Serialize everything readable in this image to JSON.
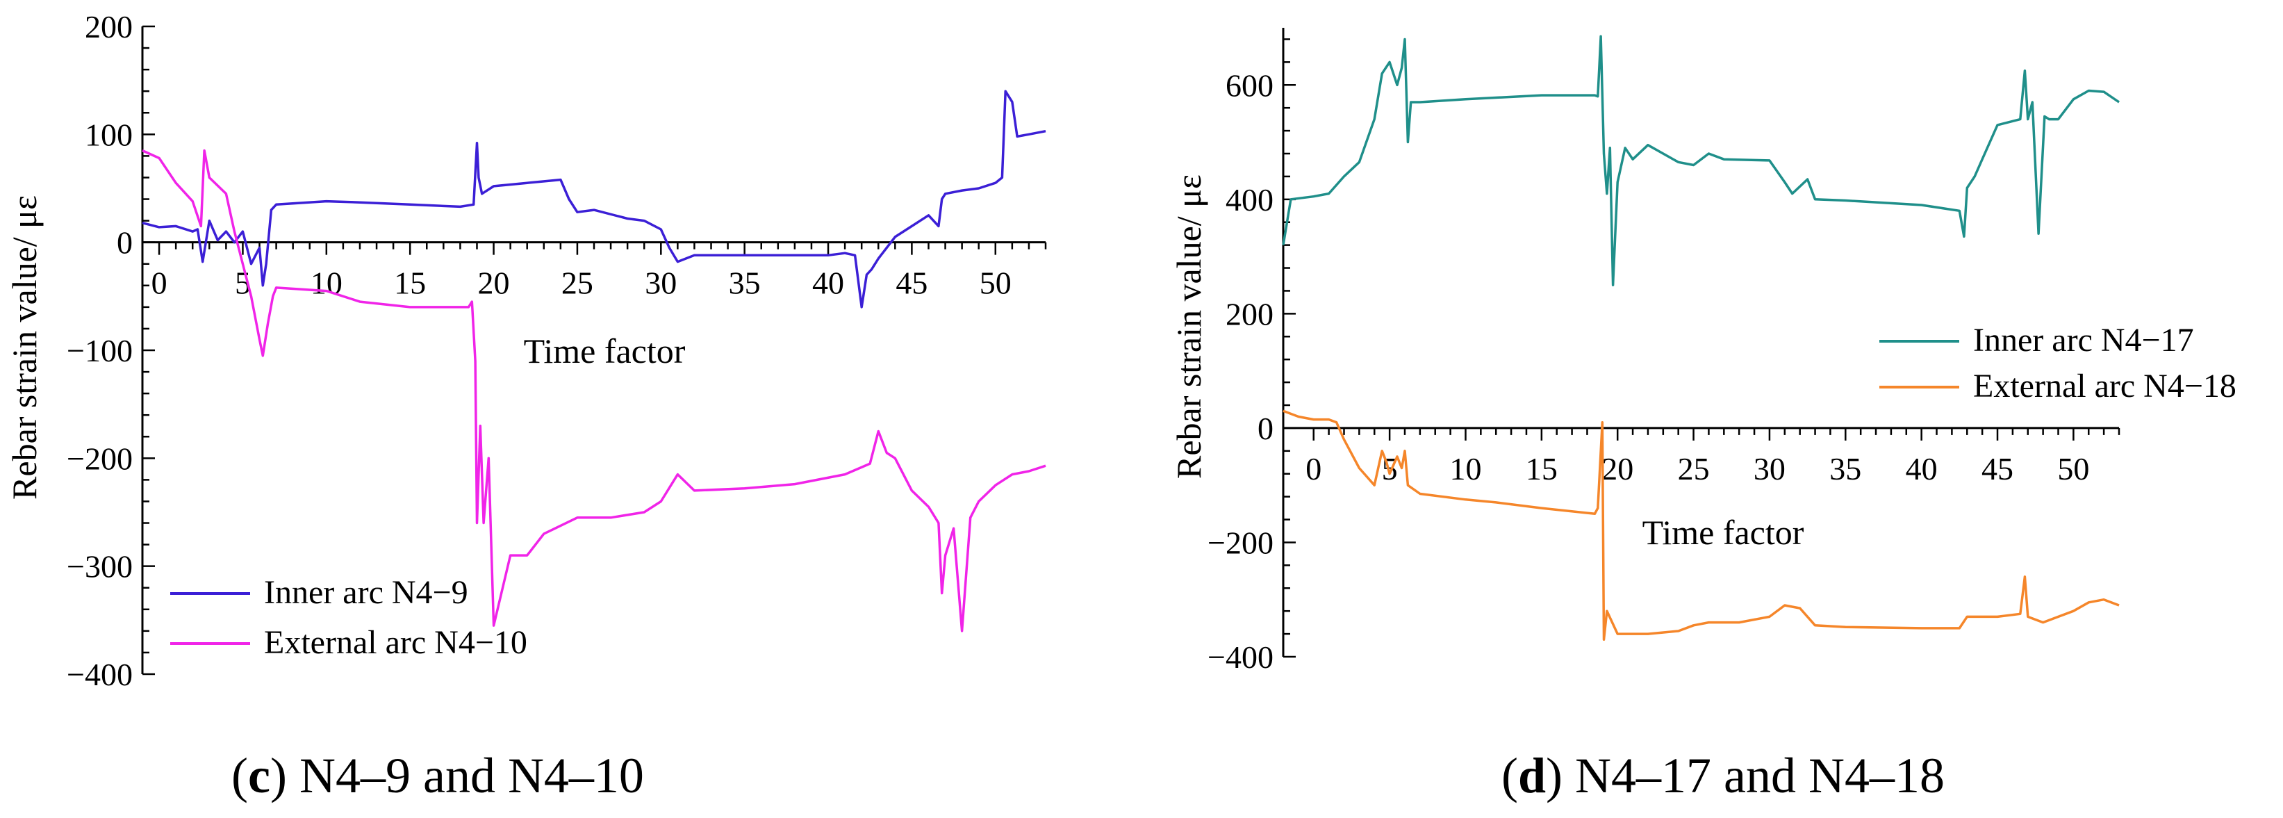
{
  "chart_data": [
    {
      "id": "c",
      "type": "line",
      "caption_letter": "c",
      "caption_text": " N4–9 and N4–10",
      "xlabel": "Time factor",
      "ylabel": "Rebar strain value/ με",
      "xlim": [
        -1,
        53
      ],
      "ylim": [
        -400,
        200
      ],
      "xticks": [
        0,
        5,
        10,
        15,
        20,
        25,
        30,
        35,
        40,
        45,
        50
      ],
      "yticks": [
        -400,
        -300,
        -200,
        -100,
        0,
        100,
        200
      ],
      "legend_position": "lower-left",
      "series": [
        {
          "name": "Inner arc N4−9",
          "color": "#3b1fd6",
          "x": [
            -1,
            0,
            1,
            2,
            2.3,
            2.6,
            3,
            3.5,
            4,
            4.5,
            5,
            5.5,
            6,
            6.2,
            6.4,
            6.7,
            7,
            10,
            12,
            15,
            18,
            18.8,
            19,
            19.1,
            19.3,
            20,
            22,
            24,
            24.5,
            25,
            26,
            28,
            29,
            30,
            30.5,
            31,
            32,
            35,
            38,
            40,
            41,
            41.6,
            42,
            42.3,
            42.6,
            43,
            44,
            45,
            46,
            46.6,
            46.8,
            47,
            48,
            49,
            50,
            50.4,
            50.6,
            51,
            51.3,
            52,
            53
          ],
          "y": [
            18,
            14,
            15,
            10,
            12,
            -18,
            20,
            2,
            10,
            0,
            10,
            -20,
            -5,
            -40,
            -20,
            30,
            35,
            38,
            37,
            35,
            33,
            35,
            92,
            60,
            45,
            52,
            55,
            58,
            40,
            28,
            30,
            22,
            20,
            12,
            -5,
            -18,
            -12,
            -12,
            -12,
            -12,
            -10,
            -12,
            -60,
            -30,
            -25,
            -15,
            5,
            15,
            25,
            15,
            40,
            45,
            48,
            50,
            55,
            60,
            140,
            130,
            98,
            100,
            103
          ]
        },
        {
          "name": "External arc N4−10",
          "color": "#f024e8",
          "x": [
            -1,
            0,
            1,
            2,
            2.5,
            2.7,
            3,
            4,
            4.5,
            5,
            5.5,
            6,
            6.2,
            6.5,
            6.8,
            7,
            10,
            12,
            15,
            18.5,
            18.7,
            18.9,
            19,
            19.2,
            19.4,
            19.7,
            20,
            21,
            22,
            23,
            25,
            27,
            29,
            30,
            31,
            32,
            35,
            38,
            41,
            42.5,
            43,
            43.5,
            44,
            45,
            46,
            46.6,
            46.8,
            47,
            47.5,
            48,
            48.5,
            49,
            50,
            51,
            52,
            53
          ],
          "y": [
            85,
            78,
            55,
            38,
            15,
            85,
            60,
            45,
            10,
            -20,
            -50,
            -90,
            -105,
            -75,
            -50,
            -42,
            -45,
            -55,
            -60,
            -60,
            -55,
            -110,
            -260,
            -170,
            -260,
            -200,
            -355,
            -290,
            -290,
            -270,
            -255,
            -255,
            -250,
            -240,
            -215,
            -230,
            -228,
            -224,
            -215,
            -205,
            -175,
            -195,
            -200,
            -230,
            -245,
            -260,
            -325,
            -290,
            -265,
            -360,
            -255,
            -240,
            -225,
            -215,
            -212,
            -207
          ]
        }
      ]
    },
    {
      "id": "d",
      "type": "line",
      "caption_letter": "d",
      "caption_text": " N4–17 and N4–18",
      "xlabel": "Time factor",
      "ylabel": "Rebar strain value/ με",
      "xlim": [
        -2,
        53
      ],
      "ylim": [
        -400,
        700
      ],
      "xticks": [
        0,
        5,
        10,
        15,
        20,
        25,
        30,
        35,
        40,
        45,
        50
      ],
      "yticks": [
        -400,
        -200,
        0,
        200,
        400,
        600
      ],
      "legend_position": "right",
      "series": [
        {
          "name": "Inner arc N4−17",
          "color": "#1f8f8a",
          "x": [
            -2,
            -1.5,
            0,
            1,
            2,
            3,
            4,
            4.5,
            5,
            5.5,
            5.8,
            6,
            6.2,
            6.4,
            7,
            10,
            15,
            18.5,
            18.7,
            18.9,
            19.1,
            19.3,
            19.5,
            19.7,
            20,
            20.5,
            21,
            22,
            23,
            24,
            25,
            26,
            27,
            30,
            31,
            31.5,
            32.5,
            33,
            35,
            40,
            42.5,
            42.8,
            43,
            43.5,
            44,
            45,
            46.5,
            46.8,
            47,
            47.3,
            47.7,
            48.1,
            48.4,
            49,
            50,
            51,
            52,
            53
          ],
          "y": [
            320,
            400,
            405,
            410,
            440,
            465,
            540,
            620,
            640,
            600,
            630,
            680,
            500,
            570,
            570,
            575,
            582,
            582,
            580,
            685,
            480,
            410,
            490,
            250,
            430,
            490,
            470,
            495,
            480,
            465,
            460,
            480,
            470,
            468,
            430,
            410,
            435,
            400,
            398,
            390,
            380,
            335,
            420,
            440,
            470,
            530,
            540,
            625,
            540,
            570,
            340,
            545,
            540,
            540,
            575,
            590,
            588,
            570
          ]
        },
        {
          "name": "External arc N4−18",
          "color": "#f5862a",
          "x": [
            -2,
            -1,
            0,
            1,
            1.5,
            2,
            3,
            4,
            4.5,
            4.8,
            5,
            5.5,
            5.8,
            6,
            6.2,
            7,
            10,
            12,
            15,
            18.5,
            18.7,
            19,
            19.1,
            19.3,
            20,
            22,
            24,
            25,
            26,
            28,
            30,
            31,
            32,
            33,
            35,
            40,
            42.5,
            43,
            45,
            46.5,
            46.8,
            47,
            48,
            50,
            51,
            52,
            53
          ],
          "y": [
            30,
            20,
            15,
            15,
            10,
            -20,
            -70,
            -100,
            -40,
            -60,
            -80,
            -50,
            -70,
            -40,
            -100,
            -115,
            -125,
            -130,
            -140,
            -150,
            -140,
            10,
            -370,
            -320,
            -360,
            -360,
            -355,
            -345,
            -340,
            -340,
            -330,
            -310,
            -315,
            -345,
            -348,
            -350,
            -350,
            -330,
            -330,
            -325,
            -260,
            -330,
            -340,
            -320,
            -305,
            -300,
            -310
          ]
        }
      ]
    }
  ]
}
